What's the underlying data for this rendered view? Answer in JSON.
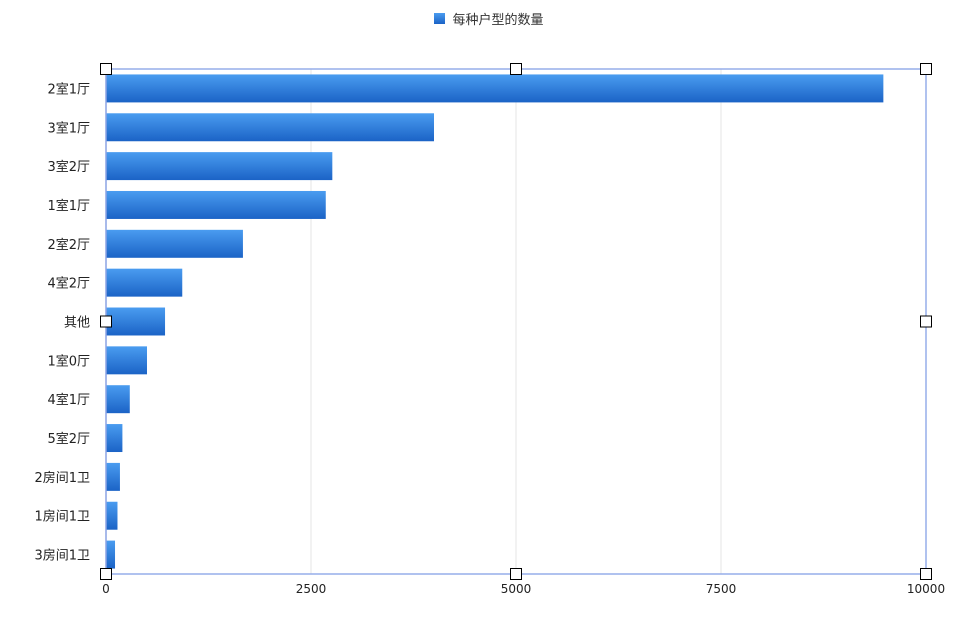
{
  "chart_data": {
    "type": "bar",
    "orientation": "horizontal",
    "title": "",
    "xlabel": "",
    "ylabel": "",
    "categories": [
      "2室1厅",
      "3室1厅",
      "3室2厅",
      "1室1厅",
      "2室2厅",
      "4室2厅",
      "其他",
      "1室0厅",
      "4室1厅",
      "5室2厅",
      "2房间1卫",
      "1房间1卫",
      "3房间1卫"
    ],
    "series": [
      {
        "name": "每种户型的数量",
        "values": [
          9480,
          4000,
          2760,
          2680,
          1670,
          930,
          720,
          500,
          290,
          200,
          170,
          140,
          110
        ]
      }
    ],
    "xlim": [
      0,
      10000
    ],
    "xticks": [
      "0",
      "2500",
      "5000",
      "7500",
      "10000"
    ],
    "grid": true,
    "legend_position": "top-center",
    "colors": {
      "bar_top": "#4a9cf0",
      "bar_bottom": "#1b63c6",
      "frame": "#8fa8e8",
      "grid": "#e6e6e6"
    }
  }
}
